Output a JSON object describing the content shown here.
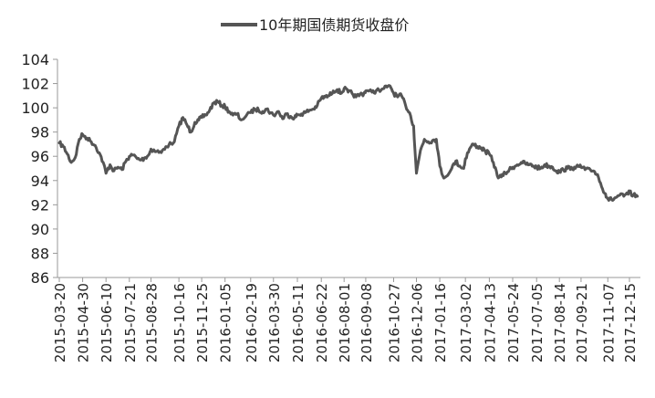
{
  "chart_data": {
    "type": "line",
    "title": "",
    "xlabel": "",
    "ylabel": "",
    "ylim": [
      86,
      104
    ],
    "yticks": [
      86,
      88,
      90,
      92,
      94,
      96,
      98,
      100,
      102,
      104
    ],
    "grid": false,
    "legend": "top-center",
    "x_ticks": [
      "2015-03-20",
      "2015-04-30",
      "2015-06-10",
      "2015-07-21",
      "2015-08-28",
      "2015-10-16",
      "2015-11-25",
      "2016-01-05",
      "2016-02-19",
      "2016-03-30",
      "2016-05-11",
      "2016-06-22",
      "2016-08-01",
      "2016-09-08",
      "2016-10-27",
      "2016-12-06",
      "2017-01-16",
      "2017-03-02",
      "2017-04-13",
      "2017-05-24",
      "2017-07-05",
      "2017-08-14",
      "2017-09-21",
      "2017-11-07",
      "2017-12-15"
    ],
    "series": [
      {
        "name": "10年期国债期货收盘价",
        "color": "#555555",
        "x": [
          "2015-03-20",
          "2015-03-27",
          "2015-04-03",
          "2015-04-10",
          "2015-04-17",
          "2015-04-24",
          "2015-04-30",
          "2015-05-08",
          "2015-05-15",
          "2015-05-22",
          "2015-05-29",
          "2015-06-05",
          "2015-06-10",
          "2015-06-17",
          "2015-06-24",
          "2015-07-01",
          "2015-07-08",
          "2015-07-15",
          "2015-07-21",
          "2015-07-28",
          "2015-08-04",
          "2015-08-11",
          "2015-08-18",
          "2015-08-25",
          "2015-08-28",
          "2015-09-07",
          "2015-09-15",
          "2015-09-23",
          "2015-10-08",
          "2015-10-16",
          "2015-10-23",
          "2015-10-30",
          "2015-11-06",
          "2015-11-13",
          "2015-11-20",
          "2015-11-25",
          "2015-12-02",
          "2015-12-09",
          "2015-12-16",
          "2015-12-23",
          "2015-12-30",
          "2016-01-05",
          "2016-01-12",
          "2016-01-19",
          "2016-01-26",
          "2016-02-02",
          "2016-02-19",
          "2016-02-26",
          "2016-03-04",
          "2016-03-11",
          "2016-03-18",
          "2016-03-25",
          "2016-03-30",
          "2016-04-08",
          "2016-04-15",
          "2016-04-22",
          "2016-04-29",
          "2016-05-06",
          "2016-05-11",
          "2016-05-18",
          "2016-05-25",
          "2016-06-01",
          "2016-06-08",
          "2016-06-15",
          "2016-06-22",
          "2016-06-29",
          "2016-07-06",
          "2016-07-13",
          "2016-07-20",
          "2016-07-27",
          "2016-08-01",
          "2016-08-08",
          "2016-08-15",
          "2016-08-22",
          "2016-08-29",
          "2016-09-05",
          "2016-09-08",
          "2016-09-19",
          "2016-09-26",
          "2016-10-10",
          "2016-10-17",
          "2016-10-24",
          "2016-10-27",
          "2016-11-03",
          "2016-11-10",
          "2016-11-17",
          "2016-11-24",
          "2016-12-01",
          "2016-12-06",
          "2016-12-13",
          "2016-12-20",
          "2016-12-27",
          "2017-01-03",
          "2017-01-10",
          "2017-01-16",
          "2017-01-23",
          "2017-02-06",
          "2017-02-13",
          "2017-02-20",
          "2017-02-27",
          "2017-03-02",
          "2017-03-09",
          "2017-03-16",
          "2017-03-23",
          "2017-03-30",
          "2017-04-06",
          "2017-04-13",
          "2017-04-20",
          "2017-04-27",
          "2017-05-04",
          "2017-05-11",
          "2017-05-18",
          "2017-05-24",
          "2017-06-01",
          "2017-06-08",
          "2017-06-15",
          "2017-06-22",
          "2017-06-29",
          "2017-07-05",
          "2017-07-12",
          "2017-07-19",
          "2017-07-26",
          "2017-08-02",
          "2017-08-09",
          "2017-08-14",
          "2017-08-21",
          "2017-08-28",
          "2017-09-04",
          "2017-09-11",
          "2017-09-18",
          "2017-09-21",
          "2017-09-28",
          "2017-10-13",
          "2017-10-20",
          "2017-10-27",
          "2017-11-03",
          "2017-11-07",
          "2017-11-14",
          "2017-11-21",
          "2017-11-28",
          "2017-12-05",
          "2017-12-12",
          "2017-12-15",
          "2017-12-22",
          "2017-12-29"
        ],
        "values": [
          97.1,
          96.8,
          96.2,
          95.5,
          95.9,
          97.4,
          97.8,
          97.5,
          97.2,
          96.9,
          96.3,
          95.5,
          94.6,
          95.3,
          94.8,
          95.1,
          94.9,
          95.6,
          96.0,
          96.1,
          95.8,
          95.7,
          95.9,
          96.2,
          96.6,
          96.4,
          96.3,
          96.8,
          97.2,
          98.5,
          99.2,
          98.6,
          98.0,
          98.8,
          99.0,
          99.2,
          99.4,
          99.8,
          100.4,
          100.5,
          100.2,
          100.1,
          99.7,
          99.4,
          99.5,
          99.0,
          99.6,
          99.9,
          99.8,
          99.7,
          99.9,
          99.6,
          99.4,
          99.7,
          99.1,
          99.5,
          99.3,
          99.2,
          99.4,
          99.5,
          99.6,
          99.8,
          99.9,
          100.2,
          100.8,
          100.9,
          101.0,
          101.4,
          101.5,
          101.2,
          101.6,
          101.3,
          101.2,
          100.9,
          101.1,
          101.2,
          101.4,
          101.3,
          101.4,
          101.6,
          101.8,
          101.5,
          101.2,
          100.9,
          101.0,
          100.2,
          99.6,
          98.5,
          94.6,
          96.5,
          97.4,
          97.2,
          97.3,
          97.4,
          95.2,
          94.2,
          95.0,
          95.6,
          95.2,
          95.0,
          95.8,
          96.6,
          97.0,
          96.8,
          96.7,
          96.4,
          96.2,
          95.5,
          94.4,
          94.3,
          94.6,
          94.9,
          95.1,
          95.3,
          95.5,
          95.4,
          95.3,
          95.2,
          95.1,
          95.0,
          95.3,
          95.2,
          95.1,
          94.8,
          94.7,
          94.9,
          95.0,
          95.1,
          95.0,
          95.2,
          95.1,
          94.9,
          94.8,
          94.5,
          93.5,
          92.9,
          92.5,
          92.4,
          92.6,
          92.8,
          92.7,
          92.9,
          93.0,
          92.8,
          92.7
        ]
      }
    ]
  }
}
